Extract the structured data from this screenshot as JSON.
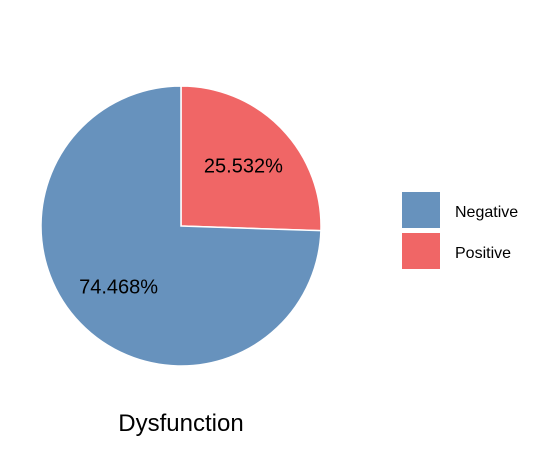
{
  "chart_data": {
    "type": "pie",
    "xlabel": "Dysfunction",
    "slices": [
      {
        "label": "Negative",
        "value": 74.468,
        "color": "#6792BD",
        "display": "74.468%"
      },
      {
        "label": "Positive",
        "value": 25.532,
        "color": "#F06666",
        "display": "25.532%"
      }
    ],
    "legend": {
      "position": "right",
      "entries": [
        {
          "label": "Negative",
          "color": "#6792BD"
        },
        {
          "label": "Positive",
          "color": "#F06666"
        }
      ]
    }
  }
}
